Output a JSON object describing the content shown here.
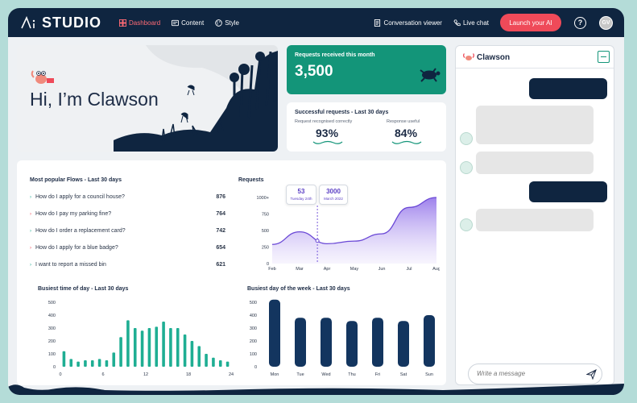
{
  "header": {
    "logo_text": "STUDIO",
    "nav": [
      {
        "label": "Dashboard",
        "icon": "dashboard-icon",
        "active": true
      },
      {
        "label": "Content",
        "icon": "content-icon",
        "active": false
      },
      {
        "label": "Style",
        "icon": "palette-icon",
        "active": false
      }
    ],
    "conversation_viewer": "Conversation viewer",
    "live_chat": "Live chat",
    "launch_button": "Launch your AI",
    "help": "?",
    "avatar_initials": "GV"
  },
  "hero": {
    "title": "Hi, I’m Clawson"
  },
  "requests_month": {
    "label": "Requests received this month",
    "value": "3,500"
  },
  "success": {
    "label": "Successful requests - Last 30 days",
    "recognised_label": "Request recognised correctly",
    "recognised_value": "93%",
    "useful_label": "Response useful",
    "useful_value": "84%"
  },
  "flows": {
    "title": "Most popular Flows - Last 30 days",
    "items": [
      {
        "question": "How do I apply for a council house?",
        "count": "876"
      },
      {
        "question": "How do I pay my parking fine?",
        "count": "764"
      },
      {
        "question": "How do I order a replacement card?",
        "count": "742"
      },
      {
        "question": "How do I apply for a blue badge?",
        "count": "654"
      },
      {
        "question": "I want to report a missed bin",
        "count": "621"
      }
    ]
  },
  "chat": {
    "name": "Clawson",
    "input_placeholder": "Write a message"
  },
  "colors": {
    "navy": "#0f2540",
    "accent_red": "#ef4a59",
    "teal": "#139579",
    "purple": "#7b5ce0",
    "bar_teal": "#1fae93",
    "bar_navy": "#13355f"
  },
  "chart_data": [
    {
      "type": "area",
      "title": "Requests",
      "categories": [
        "Feb",
        "Mar",
        "Apr",
        "May",
        "Jun",
        "Jul",
        "Aug"
      ],
      "y_ticks": [
        "0",
        "250",
        "500",
        "750",
        "1000+"
      ],
      "ylim": [
        0,
        1000
      ],
      "values": [
        290,
        480,
        300,
        340,
        450,
        850,
        1000
      ],
      "tooltip": {
        "value_a": "53",
        "label_a": "Tuesday 24th",
        "value_b": "3000",
        "label_b": "March 2022"
      }
    },
    {
      "type": "bar",
      "title": "Busiest time of day - Last 30 days",
      "x_ticks": [
        "0",
        "6",
        "12",
        "18",
        "24"
      ],
      "y_ticks": [
        "0",
        "100",
        "200",
        "300",
        "400",
        "500"
      ],
      "ylim": [
        0,
        500
      ],
      "values": [
        120,
        60,
        40,
        50,
        50,
        60,
        50,
        110,
        230,
        360,
        300,
        280,
        300,
        310,
        350,
        300,
        300,
        250,
        200,
        160,
        100,
        70,
        50,
        40
      ]
    },
    {
      "type": "bar",
      "title": "Busiest day of the week - Last 30 days",
      "categories": [
        "Mon",
        "Tue",
        "Wed",
        "Thu",
        "Fri",
        "Sat",
        "Sun"
      ],
      "y_ticks": [
        "0",
        "100",
        "200",
        "300",
        "400",
        "500"
      ],
      "ylim": [
        0,
        500
      ],
      "values": [
        520,
        380,
        380,
        355,
        380,
        355,
        400
      ]
    }
  ]
}
